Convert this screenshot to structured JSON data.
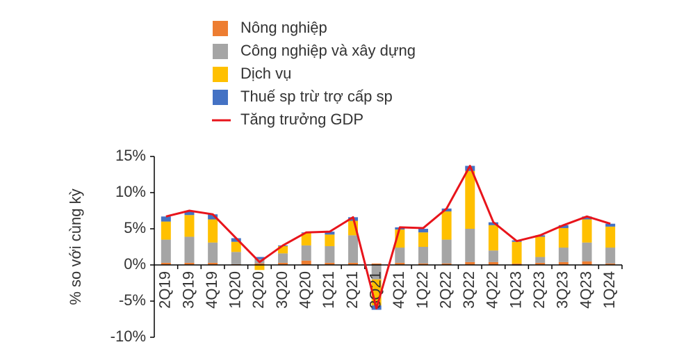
{
  "chart_data": {
    "type": "bar",
    "y_label": "% so với cùng kỳ",
    "categories": [
      "2Q19",
      "3Q19",
      "4Q19",
      "1Q20",
      "2Q20",
      "3Q20",
      "4Q20",
      "1Q21",
      "2Q21",
      "3Q21",
      "4Q21",
      "1Q22",
      "2Q22",
      "3Q22",
      "4Q22",
      "1Q23",
      "2Q23",
      "3Q23",
      "4Q23",
      "1Q24"
    ],
    "series": [
      {
        "name": "Nông nghiệp",
        "color": "#ED7D31",
        "values": [
          0.3,
          0.3,
          0.3,
          0.1,
          0.2,
          0.3,
          0.6,
          0.3,
          0.3,
          0.2,
          0.3,
          0.2,
          0.2,
          0.4,
          0.4,
          0.2,
          0.3,
          0.4,
          0.5,
          0.2
        ]
      },
      {
        "name": "Công nghiệp và xây dựng",
        "color": "#A5A5A5",
        "values": [
          3.2,
          3.6,
          2.8,
          1.7,
          0.6,
          1.3,
          2.1,
          2.3,
          3.8,
          -2.0,
          2.1,
          2.3,
          3.3,
          4.6,
          1.6,
          -0.1,
          0.8,
          2.0,
          2.6,
          2.2
        ]
      },
      {
        "name": "Dịch vụ",
        "color": "#FFC000",
        "values": [
          2.5,
          3.0,
          3.2,
          1.4,
          -0.7,
          1.0,
          1.7,
          1.6,
          2.0,
          -3.6,
          2.5,
          2.0,
          3.9,
          8.0,
          3.5,
          3.0,
          2.8,
          2.7,
          3.2,
          2.9
        ]
      },
      {
        "name": "Thuế sp trừ trợ cấp sp",
        "color": "#4472C4",
        "values": [
          0.7,
          0.6,
          0.7,
          0.5,
          0.3,
          0.1,
          0.1,
          0.4,
          0.5,
          -0.6,
          0.3,
          0.5,
          0.4,
          0.7,
          0.4,
          0.2,
          0.2,
          0.4,
          0.4,
          0.4
        ]
      },
      {
        "name": "Tăng trưởng GDP",
        "color": "#E8141B",
        "type": "line",
        "values": [
          6.7,
          7.5,
          7.0,
          3.7,
          0.4,
          2.7,
          4.5,
          4.6,
          6.6,
          -6.0,
          5.2,
          5.1,
          7.8,
          13.7,
          5.9,
          3.3,
          4.1,
          5.5,
          6.7,
          5.7
        ]
      }
    ],
    "ylim": [
      -10,
      15
    ],
    "yticks": [
      {
        "value": -10,
        "label": "-10%"
      },
      {
        "value": -5,
        "label": "-5%"
      },
      {
        "value": 0,
        "label": "0%"
      },
      {
        "value": 5,
        "label": "5%"
      },
      {
        "value": 10,
        "label": "10%"
      },
      {
        "value": 15,
        "label": "15%"
      }
    ]
  }
}
